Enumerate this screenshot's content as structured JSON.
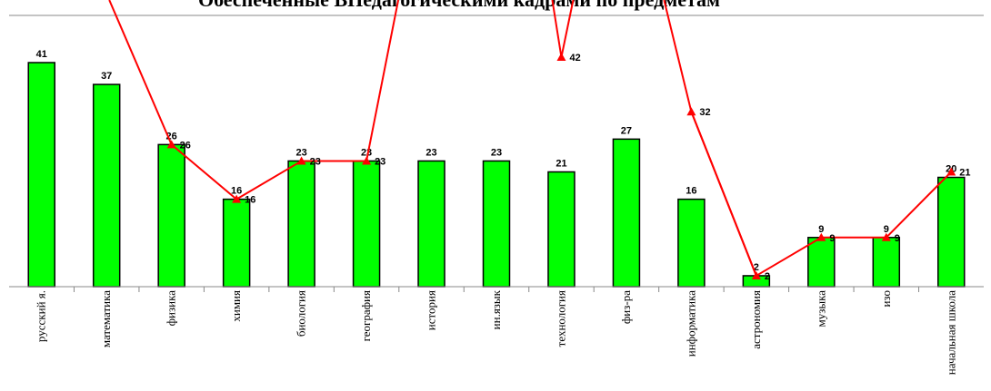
{
  "chart_data": {
    "type": "bar",
    "title": "Обеспеченные ВПедагогическими кадрами по предметам",
    "categories": [
      "русский я.",
      "математика",
      "физика",
      "химия",
      "биология",
      "география",
      "история",
      "ин.язык",
      "технология",
      "физ-ра",
      "информатика",
      "астрономия",
      "музыка",
      "изо",
      "начальная школа"
    ],
    "series": [
      {
        "kind": "bar",
        "color": "#00ff00",
        "values": [
          41,
          37,
          26,
          16,
          23,
          23,
          23,
          23,
          21,
          27,
          16,
          2,
          9,
          9,
          20
        ]
      },
      {
        "kind": "line",
        "color": "#ff0000",
        "values": [
          null,
          null,
          26,
          16,
          23,
          23,
          null,
          null,
          42,
          null,
          32,
          2,
          9,
          9,
          21
        ]
      }
    ],
    "visible_line_labels": [
      null,
      null,
      "26",
      "16",
      "23",
      "23",
      null,
      null,
      "42",
      null,
      "32",
      "2",
      "9",
      "9",
      "21"
    ],
    "ylim": [
      0,
      41
    ],
    "grid": false,
    "legend": "none"
  }
}
